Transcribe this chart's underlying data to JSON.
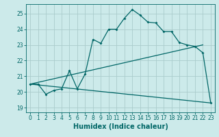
{
  "xlabel": "Humidex (Indice chaleur)",
  "bg_color": "#cceaea",
  "grid_color": "#aacccc",
  "line_color": "#006666",
  "xlim": [
    -0.5,
    23.5
  ],
  "ylim": [
    18.7,
    25.6
  ],
  "yticks": [
    19,
    20,
    21,
    22,
    23,
    24,
    25
  ],
  "xticks": [
    0,
    1,
    2,
    3,
    4,
    5,
    6,
    7,
    8,
    9,
    10,
    11,
    12,
    13,
    14,
    15,
    16,
    17,
    18,
    19,
    20,
    21,
    22,
    23
  ],
  "line1_x": [
    0,
    1,
    2,
    3,
    4,
    5,
    6,
    7,
    8,
    9,
    10,
    11,
    12,
    13,
    14,
    15,
    16,
    17,
    18,
    19,
    20,
    21,
    22,
    23
  ],
  "line1_y": [
    20.5,
    20.5,
    19.85,
    20.1,
    20.2,
    21.35,
    20.2,
    21.15,
    23.35,
    23.1,
    24.0,
    24.0,
    24.7,
    25.25,
    24.9,
    24.45,
    24.4,
    23.85,
    23.85,
    23.15,
    23.0,
    22.9,
    22.5,
    19.3
  ],
  "line2_x": [
    0,
    22
  ],
  "line2_y": [
    20.5,
    23.0
  ],
  "line3_x": [
    0,
    23
  ],
  "line3_y": [
    20.5,
    19.3
  ],
  "xlabel_fontsize": 7,
  "tick_fontsize": 5.5
}
